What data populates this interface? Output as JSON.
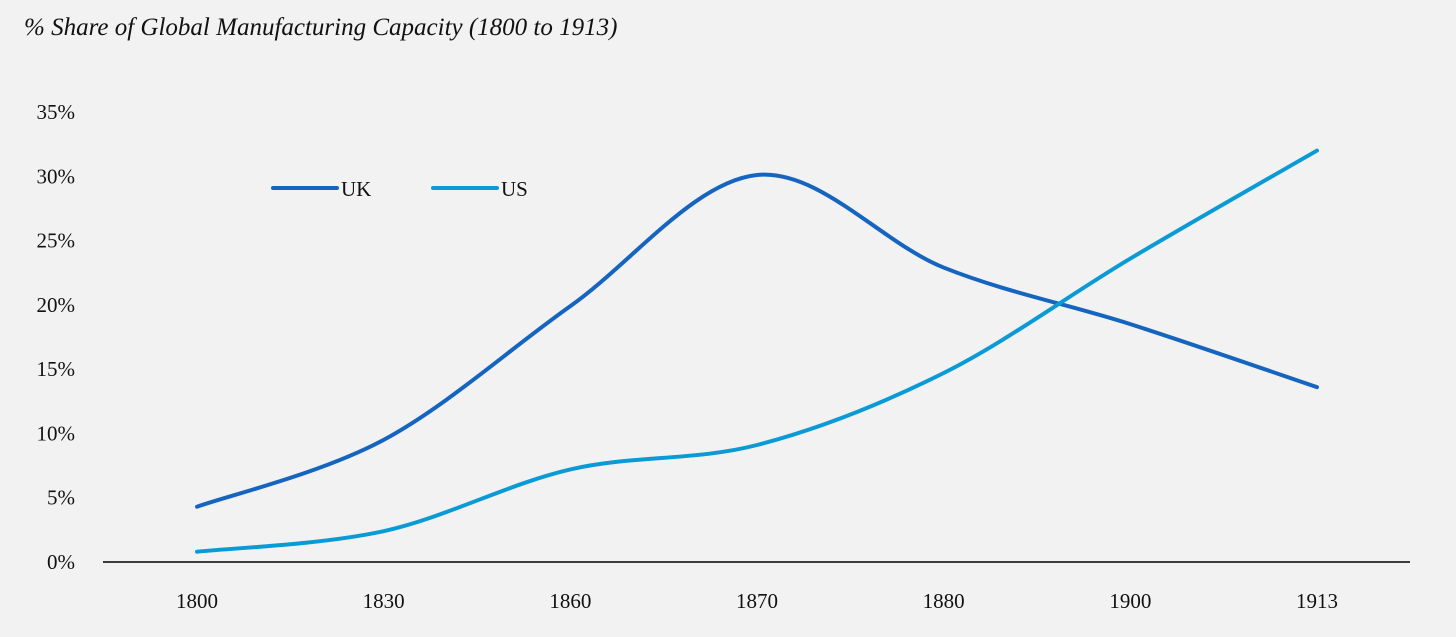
{
  "chart_data": {
    "type": "line",
    "title": "% Share of Global Manufacturing Capacity (1800 to 1913)",
    "xlabel": "",
    "ylabel": "",
    "categories": [
      "1800",
      "1830",
      "1860",
      "1870",
      "1880",
      "1900",
      "1913"
    ],
    "ylim": [
      0,
      35
    ],
    "yticks": [
      "0%",
      "5%",
      "10%",
      "15%",
      "20%",
      "25%",
      "30%",
      "35%"
    ],
    "grid": false,
    "legend": "top-left",
    "series": [
      {
        "name": "UK",
        "color": "#1565c0",
        "values": [
          4.3,
          9.5,
          19.9,
          30.1,
          22.9,
          18.5,
          13.6
        ]
      },
      {
        "name": "US",
        "color": "#0a9ad6",
        "values": [
          0.8,
          2.4,
          7.2,
          9.1,
          14.7,
          23.6,
          32.0
        ]
      }
    ]
  }
}
